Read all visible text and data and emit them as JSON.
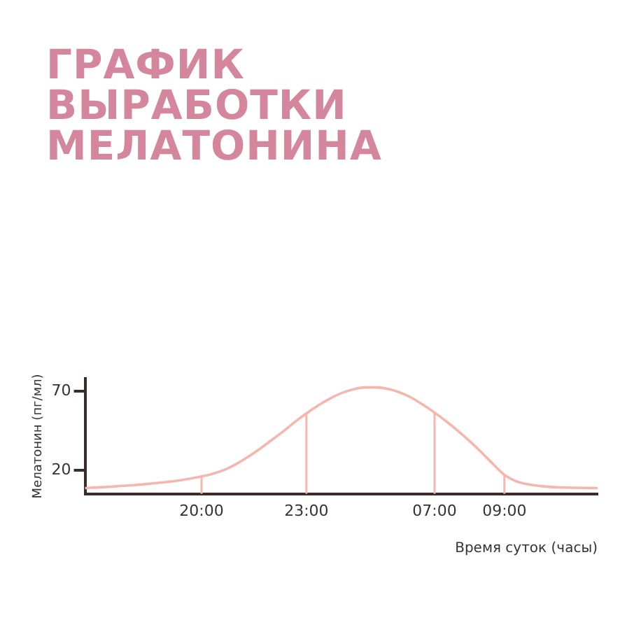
{
  "chart_data": {
    "type": "line",
    "title": "ГРАФИК ВЫРАБОТКИ МЕЛАТОНИНА",
    "xlabel": "Время суток (часы)",
    "ylabel": "Мелатонин (пг/мл)",
    "categories": [
      null,
      null,
      null,
      null,
      null,
      null,
      null,
      null,
      null,
      null,
      "20:00",
      null,
      null,
      null,
      null,
      null,
      null,
      null,
      null,
      "23:00",
      null,
      null,
      null,
      null,
      null,
      null,
      null,
      null,
      null,
      null,
      "07:00",
      null,
      null,
      null,
      null,
      null,
      "09:00",
      null,
      null,
      null,
      null,
      null,
      null,
      null,
      null
    ],
    "series": [
      {
        "color": "#f4b6ae",
        "values": [
          8.6,
          9,
          9.4,
          9.9,
          10.4,
          11,
          11.7,
          12.5,
          13.4,
          14.6,
          16,
          17.8,
          20.3,
          24,
          28.5,
          33.5,
          39,
          44.5,
          50.5,
          56,
          61,
          65.3,
          68.8,
          71.2,
          72.5,
          72.5,
          71.5,
          69.3,
          66,
          61.5,
          56.5,
          51,
          45,
          38.5,
          31.5,
          24,
          17,
          13,
          11,
          10,
          9.3,
          9,
          8.8,
          8.7,
          8.6
        ]
      }
    ],
    "ylim": [
      5,
      78
    ],
    "yticks": [
      20,
      70
    ],
    "grid": false,
    "legend": false,
    "marker": "none",
    "line_style": "solid"
  }
}
